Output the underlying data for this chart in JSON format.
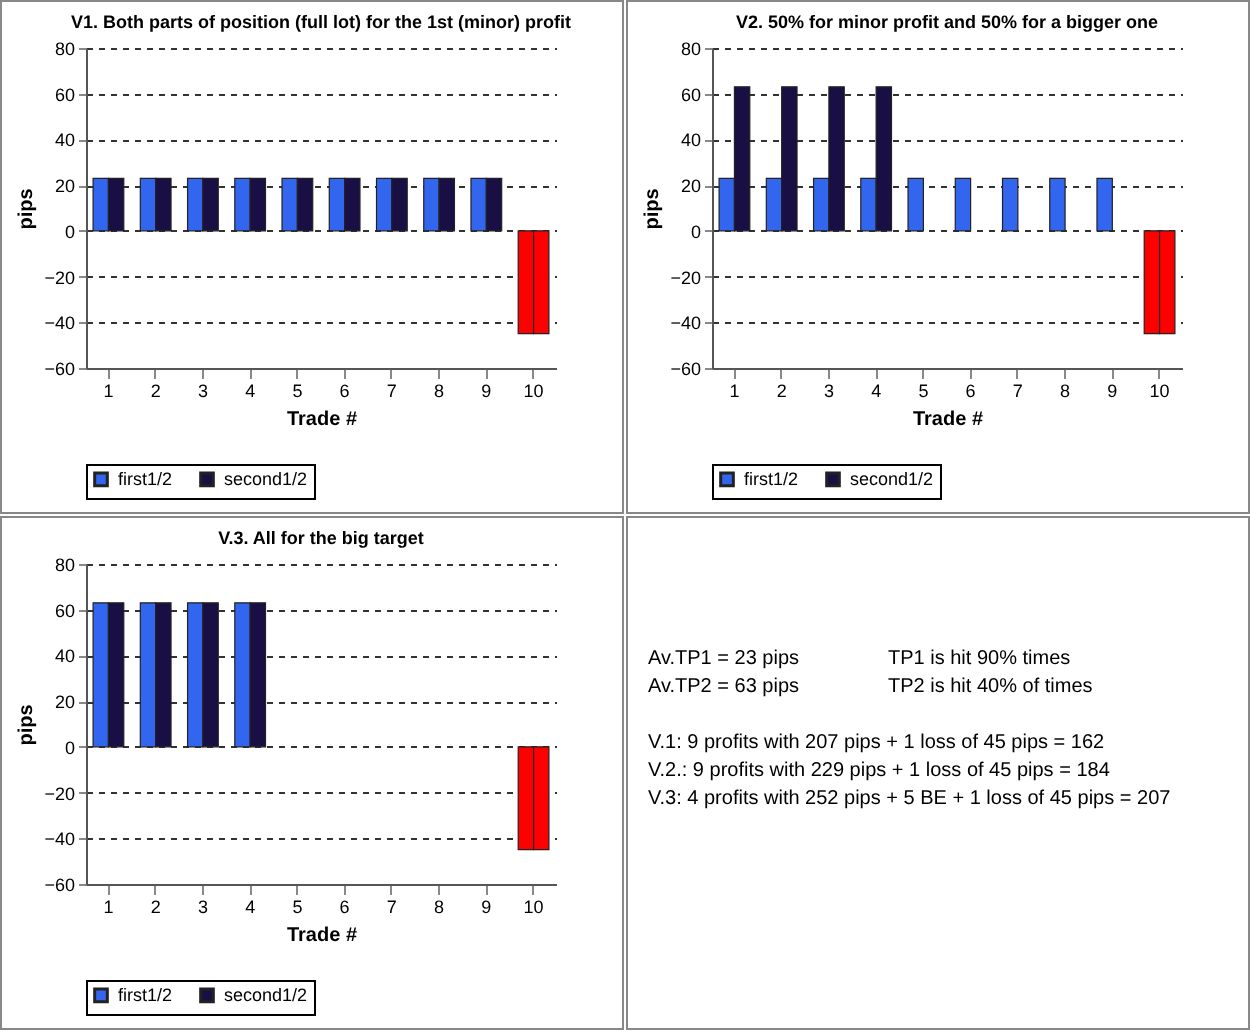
{
  "chart_data": [
    {
      "type": "bar",
      "title": "V1. Both parts of position (full lot) for the 1st (minor) profit",
      "xlabel": "Trade #",
      "ylabel": "pips",
      "categories": [
        "1",
        "2",
        "3",
        "4",
        "5",
        "6",
        "7",
        "8",
        "9",
        "10"
      ],
      "series": [
        {
          "name": "first1/2",
          "color": "#3366ee",
          "values": [
            23,
            23,
            23,
            23,
            23,
            23,
            23,
            23,
            23,
            -45
          ],
          "colors": [
            "#3366ee",
            "#3366ee",
            "#3366ee",
            "#3366ee",
            "#3366ee",
            "#3366ee",
            "#3366ee",
            "#3366ee",
            "#3366ee",
            "#ff0000"
          ]
        },
        {
          "name": "second1/2",
          "color": "#1a0f45",
          "values": [
            23,
            23,
            23,
            23,
            23,
            23,
            23,
            23,
            23,
            -45
          ],
          "colors": [
            "#1a0f45",
            "#1a0f45",
            "#1a0f45",
            "#1a0f45",
            "#1a0f45",
            "#1a0f45",
            "#1a0f45",
            "#1a0f45",
            "#1a0f45",
            "#ff0000"
          ]
        }
      ],
      "ylim": [
        -60,
        80
      ],
      "yticks": [
        -60,
        -40,
        -20,
        0,
        20,
        40,
        60,
        80
      ],
      "grid": "y",
      "legend": "bottom"
    },
    {
      "type": "bar",
      "title": "V2. 50% for minor profit and 50% for a bigger one",
      "xlabel": "Trade #",
      "ylabel": "pips",
      "categories": [
        "1",
        "2",
        "3",
        "4",
        "5",
        "6",
        "7",
        "8",
        "9",
        "10"
      ],
      "series": [
        {
          "name": "first1/2",
          "color": "#3366ee",
          "values": [
            23,
            23,
            23,
            23,
            23,
            23,
            23,
            23,
            23,
            -45
          ],
          "colors": [
            "#3366ee",
            "#3366ee",
            "#3366ee",
            "#3366ee",
            "#3366ee",
            "#3366ee",
            "#3366ee",
            "#3366ee",
            "#3366ee",
            "#ff0000"
          ]
        },
        {
          "name": "second1/2",
          "color": "#1a0f45",
          "values": [
            63,
            63,
            63,
            63,
            null,
            null,
            null,
            null,
            null,
            -45
          ],
          "colors": [
            "#1a0f45",
            "#1a0f45",
            "#1a0f45",
            "#1a0f45",
            null,
            null,
            null,
            null,
            null,
            "#ff0000"
          ]
        }
      ],
      "ylim": [
        -60,
        80
      ],
      "yticks": [
        -60,
        -40,
        -20,
        0,
        20,
        40,
        60,
        80
      ],
      "grid": "y",
      "legend": "bottom"
    },
    {
      "type": "bar",
      "title": "V.3. All for the big target",
      "xlabel": "Trade #",
      "ylabel": "pips",
      "categories": [
        "1",
        "2",
        "3",
        "4",
        "5",
        "6",
        "7",
        "8",
        "9",
        "10"
      ],
      "series": [
        {
          "name": "first1/2",
          "color": "#3366ee",
          "values": [
            63,
            63,
            63,
            63,
            null,
            null,
            null,
            null,
            null,
            -45
          ],
          "colors": [
            "#3366ee",
            "#3366ee",
            "#3366ee",
            "#3366ee",
            null,
            null,
            null,
            null,
            null,
            "#ff0000"
          ]
        },
        {
          "name": "second1/2",
          "color": "#1a0f45",
          "values": [
            63,
            63,
            63,
            63,
            null,
            null,
            null,
            null,
            null,
            -45
          ],
          "colors": [
            "#1a0f45",
            "#1a0f45",
            "#1a0f45",
            "#1a0f45",
            null,
            null,
            null,
            null,
            null,
            "#ff0000"
          ]
        }
      ],
      "ylim": [
        -60,
        80
      ],
      "yticks": [
        -60,
        -40,
        -20,
        0,
        20,
        40,
        60,
        80
      ],
      "grid": "y",
      "legend": "bottom"
    },
    {
      "type": "other",
      "annotations": [
        "Av.TP1 = 23 pips",
        "TP1 is hit 90% times",
        "Av.TP2 = 63 pips",
        "TP2 is hit 40% of times",
        "V.1: 9 profits with 207 pips + 1 loss of 45 pips = 162",
        "V.2.: 9 profits with 229 pips + 1 loss of 45 pips = 184",
        "V.3: 4 profits with 252 pips + 5 BE + 1 loss of 45 pips = 207"
      ]
    }
  ]
}
